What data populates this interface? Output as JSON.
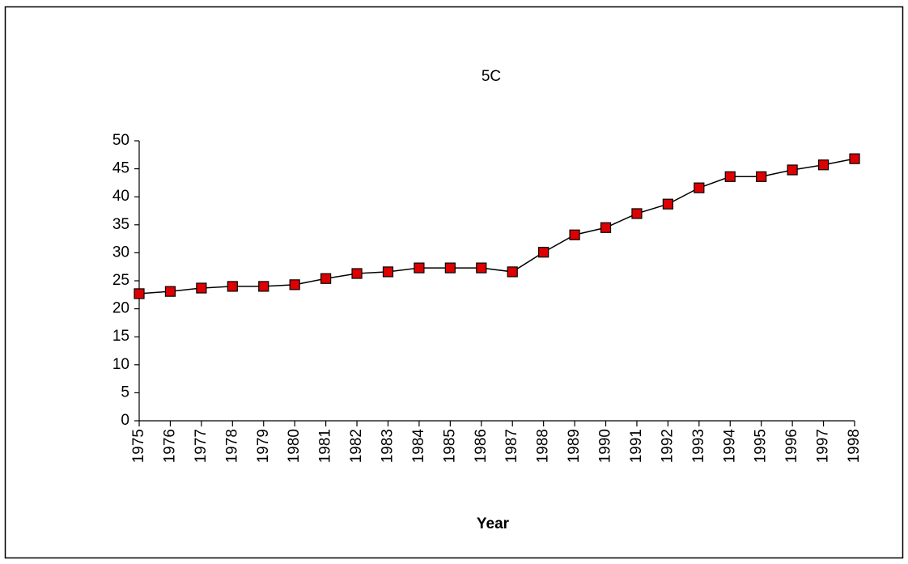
{
  "chart_data": {
    "type": "line",
    "title": "5C",
    "x_label": "Year",
    "categories": [
      "1975",
      "1976",
      "1977",
      "1978",
      "1979",
      "1980",
      "1981",
      "1982",
      "1983",
      "1984",
      "1985",
      "1986",
      "1987",
      "1988",
      "1989",
      "1990",
      "1991",
      "1992",
      "1993",
      "1994",
      "1995",
      "1996",
      "1997",
      "1998"
    ],
    "values": [
      22.7,
      23.1,
      23.7,
      24.0,
      24.0,
      24.3,
      25.4,
      26.3,
      26.6,
      27.3,
      27.3,
      27.3,
      26.6,
      30.1,
      33.2,
      34.5,
      37.0,
      38.7,
      41.6,
      43.6,
      43.6,
      44.8,
      45.7,
      46.8
    ],
    "color": "#dd0000",
    "line_color": "#000000",
    "ylim": [
      0,
      50
    ],
    "yticks": [
      0,
      5,
      10,
      15,
      20,
      25,
      30,
      35,
      40,
      45,
      50
    ]
  }
}
